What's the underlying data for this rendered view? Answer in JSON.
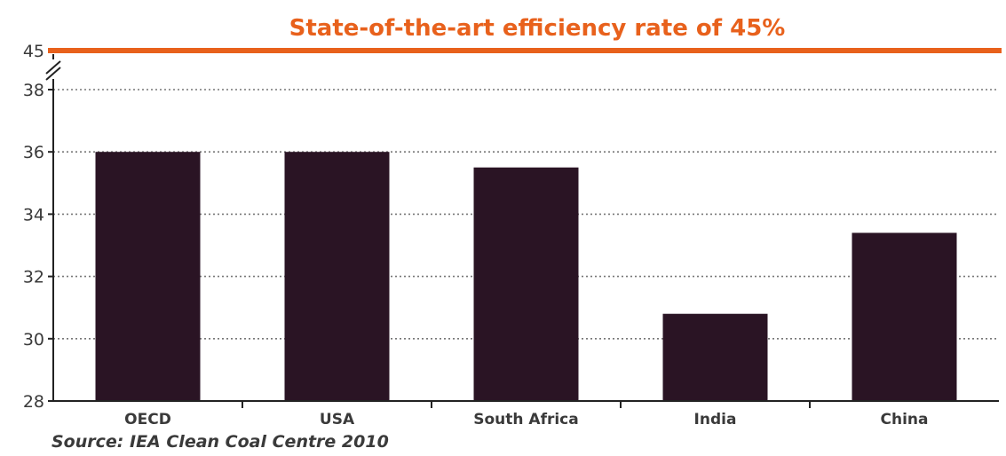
{
  "chart_data": {
    "type": "bar",
    "title": "State-of-the-art efficiency rate of 45%",
    "categories": [
      "OECD",
      "USA",
      "South Africa",
      "India",
      "China"
    ],
    "values": [
      36.0,
      36.0,
      35.5,
      30.8,
      33.4
    ],
    "reference_line": {
      "value": 45,
      "color": "#e8611c"
    },
    "y_ticks": [
      "28",
      "30",
      "32",
      "34",
      "36",
      "38",
      "45"
    ],
    "ylim": [
      28,
      38
    ],
    "axis_break": true,
    "grid": "dotted horizontal",
    "bar_color": "#2a1424",
    "source": "Source: IEA Clean Coal Centre 2010"
  }
}
